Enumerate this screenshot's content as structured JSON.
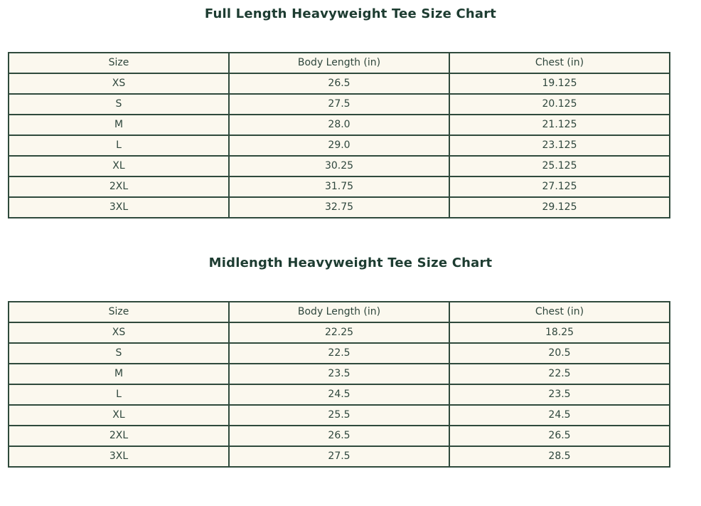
{
  "chart_data": [
    {
      "type": "table",
      "title": "Full Length Heavyweight Tee Size Chart",
      "columns": [
        "Size",
        "Body Length (in)",
        "Chest (in)"
      ],
      "rows": [
        [
          "XS",
          "26.5",
          "19.125"
        ],
        [
          "S",
          "27.5",
          "20.125"
        ],
        [
          "M",
          "28.0",
          "21.125"
        ],
        [
          "L",
          "29.0",
          "23.125"
        ],
        [
          "XL",
          "30.25",
          "25.125"
        ],
        [
          "2XL",
          "31.75",
          "27.125"
        ],
        [
          "3XL",
          "32.75",
          "29.125"
        ]
      ]
    },
    {
      "type": "table",
      "title": "Midlength Heavyweight Tee Size Chart",
      "columns": [
        "Size",
        "Body Length (in)",
        "Chest (in)"
      ],
      "rows": [
        [
          "XS",
          "22.25",
          "18.25"
        ],
        [
          "S",
          "22.5",
          "20.5"
        ],
        [
          "M",
          "23.5",
          "22.5"
        ],
        [
          "L",
          "24.5",
          "23.5"
        ],
        [
          "XL",
          "25.5",
          "24.5"
        ],
        [
          "2XL",
          "26.5",
          "26.5"
        ],
        [
          "3XL",
          "27.5",
          "28.5"
        ]
      ]
    }
  ],
  "colors": {
    "title_text": "#1d3c31",
    "cell_text": "#2e463c",
    "table_border": "#2f4a3c",
    "cell_background": "#fbf8ee",
    "page_background": "#ffffff"
  }
}
